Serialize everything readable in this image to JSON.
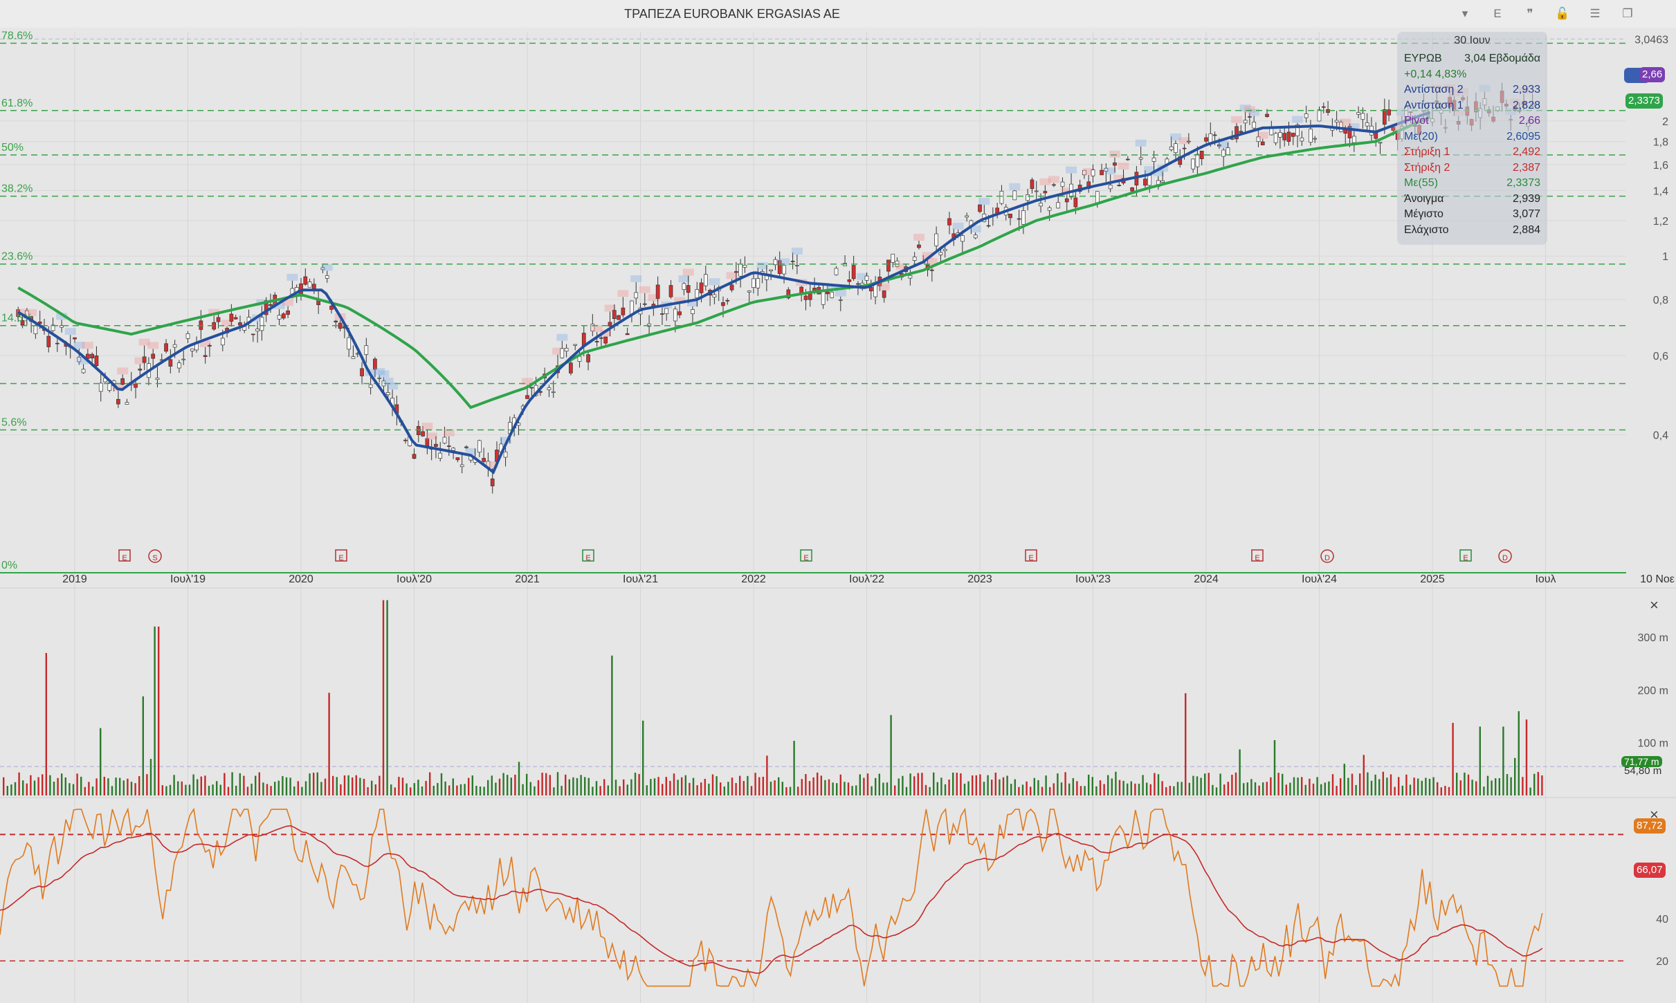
{
  "window": {
    "title": "ΤΡΑΠΕΖΑ EUROBANK ERGASIAS AE",
    "controls": [
      "▾",
      "E",
      "❞",
      "🔓",
      "☰",
      "❐"
    ]
  },
  "colors": {
    "ma20": "#244f9c",
    "ma55": "#2fa44a",
    "fib": "#3aa14a",
    "up": "#2a7a2a",
    "down": "#c62828",
    "rsi": "#e07a1e",
    "rsi_ma": "#c62828"
  },
  "fibonacci": [
    {
      "label": "78.6%",
      "y": 2.98
    },
    {
      "label": "61.8%",
      "y": 2.11
    },
    {
      "label": "50%",
      "y": 1.68
    },
    {
      "label": "38.2%",
      "y": 1.36
    },
    {
      "label": "23.6%",
      "y": 0.96
    },
    {
      "label": "14.6%",
      "y": 0.7
    },
    {
      "label": "",
      "y": 0.52
    },
    {
      "label": "5.6%",
      "y": 0.41
    },
    {
      "label": "0%",
      "y": 0.197
    }
  ],
  "info": {
    "date": "30 Ιουν",
    "rows": [
      {
        "k": "ΕΥΡΩΒ",
        "v": "3,04 Εβδομάδα",
        "c": "#1e3a20"
      },
      {
        "k": "+0,14 4,83%",
        "v": "",
        "c": "#2a7a2a"
      },
      {
        "k": "Αντίσταση 2",
        "v": "2,933",
        "c": "#1f3b8a"
      },
      {
        "k": "Αντίσταση 1",
        "v": "2,828",
        "c": "#1f3b8a"
      },
      {
        "k": "Pivot",
        "v": "2,66",
        "c": "#7a2aa0"
      },
      {
        "k": "Με(20)",
        "v": "2,6095",
        "c": "#244f9c"
      },
      {
        "k": "Στήριξη 1",
        "v": "2,492",
        "c": "#c62828"
      },
      {
        "k": "Στήριξη 2",
        "v": "2,387",
        "c": "#c62828"
      },
      {
        "k": "Με(55)",
        "v": "2,3373",
        "c": "#2a8a3a"
      },
      {
        "k": "Άνοιγμα",
        "v": "2,939",
        "c": "#222"
      },
      {
        "k": "Μέγιστο",
        "v": "3,077",
        "c": "#222"
      },
      {
        "k": "Ελάχιστο",
        "v": "2,884",
        "c": "#222"
      }
    ]
  },
  "price_axis": [
    "3,0463",
    "2",
    "1,8",
    "1,6",
    "1,4",
    "1,2",
    "1",
    "0,8",
    "0,6",
    "0,4"
  ],
  "price_pills": [
    {
      "text": "2,66",
      "color": "#7b3fb3"
    },
    {
      "text": "2,3373",
      "color": "#2fa44a"
    }
  ],
  "time_axis": [
    "2019",
    "Ιουλ'19",
    "2020",
    "Ιουλ'20",
    "2021",
    "Ιουλ'21",
    "2022",
    "Ιουλ'22",
    "2023",
    "Ιουλ'23",
    "2024",
    "Ιουλ'24",
    "2025",
    "Ιουλ",
    "10 Νοε"
  ],
  "events": [
    "E",
    "S",
    "E",
    "E",
    "E",
    "E",
    "E",
    "D",
    "E",
    "D"
  ],
  "volume_axis": [
    "300 m",
    "200 m",
    "100 m"
  ],
  "volume_pills": [
    {
      "text": "71,77 m",
      "color": "#2a8a2a"
    },
    {
      "text": "54,80 m",
      "color": "transparent"
    }
  ],
  "rsi_axis": [
    "40",
    "20"
  ],
  "rsi_pills": [
    {
      "text": "87,72",
      "color": "#e07a1e"
    },
    {
      "text": "66,07",
      "color": "#d9363e"
    }
  ],
  "chart_data": {
    "type": "line",
    "title": "ΤΡΑΠΕΖΑ EUROBANK ERGASIAS AE",
    "timeframe": "weekly",
    "y_scale": "log",
    "ylim": [
      0.197,
      3.16
    ],
    "series": [
      {
        "name": "Με(20)",
        "x": [
          2018.75,
          2019.0,
          2019.2,
          2019.5,
          2019.75,
          2020.0,
          2020.1,
          2020.3,
          2020.5,
          2020.75,
          2020.85,
          2021.0,
          2021.25,
          2021.5,
          2021.75,
          2022.0,
          2022.25,
          2022.5,
          2022.75,
          2023.0,
          2023.25,
          2023.5,
          2023.75,
          2024.0,
          2024.25,
          2024.5,
          2024.75,
          2025.0
        ],
        "values": [
          0.75,
          0.62,
          0.5,
          0.63,
          0.7,
          0.84,
          0.84,
          0.55,
          0.38,
          0.36,
          0.33,
          0.47,
          0.63,
          0.76,
          0.8,
          0.92,
          0.87,
          0.85,
          0.97,
          1.2,
          1.33,
          1.43,
          1.52,
          1.77,
          1.93,
          1.95,
          1.89,
          2.1
        ]
      },
      {
        "name": "Με(55)",
        "x": [
          2018.75,
          2019.0,
          2019.25,
          2019.5,
          2019.75,
          2020.0,
          2020.2,
          2020.5,
          2020.75,
          2021.0,
          2021.25,
          2021.5,
          2021.75,
          2022.0,
          2022.25,
          2022.5,
          2022.75,
          2023.0,
          2023.25,
          2023.5,
          2023.75,
          2024.0,
          2024.25,
          2024.5,
          2024.75,
          2025.0
        ],
        "values": [
          0.85,
          0.71,
          0.67,
          0.72,
          0.77,
          0.82,
          0.77,
          0.62,
          0.46,
          0.51,
          0.61,
          0.66,
          0.71,
          0.79,
          0.83,
          0.86,
          0.93,
          1.05,
          1.2,
          1.3,
          1.42,
          1.53,
          1.66,
          1.74,
          1.8,
          2.05
        ]
      }
    ],
    "volume": {
      "axis_labels": [
        "300 m",
        "200 m",
        "100 m"
      ],
      "last": "71,77 m",
      "avg": "54,80 m"
    },
    "rsi": {
      "upper": 80,
      "lower": 20,
      "last": 87.72,
      "ma_last": 66.07
    }
  }
}
